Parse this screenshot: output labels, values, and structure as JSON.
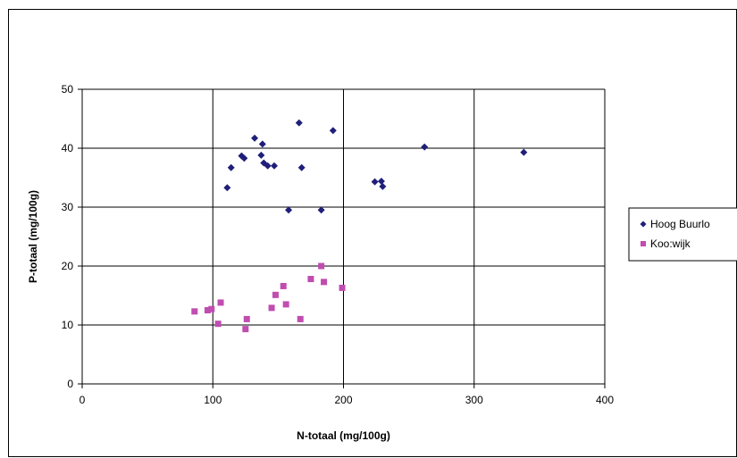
{
  "chart_data": {
    "type": "scatter",
    "xlabel": "N-totaal (mg/100g)",
    "ylabel": "P-totaal (mg/100g)",
    "xlim": [
      0,
      400
    ],
    "ylim": [
      0,
      50
    ],
    "xticks": [
      0,
      100,
      200,
      300,
      400
    ],
    "yticks": [
      0,
      10,
      20,
      30,
      40,
      50
    ],
    "grid": true,
    "legend_position": "right",
    "series": [
      {
        "name": "Hoog Buurlo",
        "marker": "diamond",
        "color": "#1F1F7A",
        "points": [
          [
            111,
            33.3
          ],
          [
            114,
            36.7
          ],
          [
            122,
            38.7
          ],
          [
            124,
            38.3
          ],
          [
            132,
            41.7
          ],
          [
            137,
            38.8
          ],
          [
            138,
            40.7
          ],
          [
            139,
            37.5
          ],
          [
            142,
            37.0
          ],
          [
            147,
            37.0
          ],
          [
            158,
            29.5
          ],
          [
            166,
            44.3
          ],
          [
            168,
            36.7
          ],
          [
            183,
            29.5
          ],
          [
            192,
            43.0
          ],
          [
            224,
            34.3
          ],
          [
            229,
            34.4
          ],
          [
            230,
            33.5
          ],
          [
            262,
            40.2
          ],
          [
            338,
            39.3
          ]
        ]
      },
      {
        "name": "Koo:wijk",
        "marker": "square",
        "color": "#C04DB0",
        "points": [
          [
            86,
            12.3
          ],
          [
            96,
            12.5
          ],
          [
            99,
            12.7
          ],
          [
            104,
            10.2
          ],
          [
            106,
            13.8
          ],
          [
            125,
            9.3
          ],
          [
            126,
            11.0
          ],
          [
            145,
            12.9
          ],
          [
            148,
            15.1
          ],
          [
            154,
            16.6
          ],
          [
            156,
            13.5
          ],
          [
            167,
            11.0
          ],
          [
            175,
            17.8
          ],
          [
            183,
            20.0
          ],
          [
            185,
            17.3
          ],
          [
            199,
            16.3
          ]
        ]
      }
    ]
  }
}
